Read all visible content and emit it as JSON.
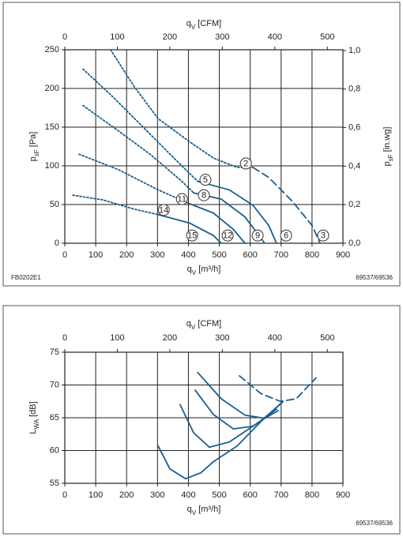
{
  "chart_data": [
    {
      "type": "line",
      "x2label": [
        "q",
        "V",
        " [CFM]"
      ],
      "xlabel": [
        "q",
        "V",
        " [m³/h]"
      ],
      "ylabel": [
        "p",
        "sF",
        " [Pa]"
      ],
      "y2label": [
        "p",
        "sF",
        " [in.wg]"
      ],
      "xlim": [
        0,
        900
      ],
      "xticks": [
        0,
        100,
        200,
        300,
        400,
        500,
        600,
        700,
        800,
        900
      ],
      "x2lim": [
        0,
        529.7
      ],
      "x2ticks": [
        0,
        100,
        200,
        300,
        400,
        500
      ],
      "ylim": [
        0,
        250
      ],
      "yticks": [
        0,
        50,
        100,
        150,
        200,
        250
      ],
      "y2lim": [
        0,
        1.004
      ],
      "y2ticks": [
        {
          "value": 0,
          "label": "0,0"
        },
        {
          "value": 0.2,
          "label": "0,2"
        },
        {
          "value": 0.4,
          "label": "0,4"
        },
        {
          "value": 0.6,
          "label": "0,6"
        },
        {
          "value": 0.8,
          "label": "0,8"
        },
        {
          "value": 1.0,
          "label": "1,0"
        }
      ],
      "grid": true,
      "series": [
        {
          "color": "#1b5e8c",
          "linestyle": "dotted",
          "x": [
            148,
            225,
            302,
            404,
            481,
            558,
            609
          ],
          "values": [
            250,
            202,
            161,
            131,
            110,
            98,
            98
          ]
        },
        {
          "color": "#1b5e8c",
          "linestyle": "dashed",
          "x": [
            609,
            660,
            737,
            800,
            826
          ],
          "values": [
            98,
            85,
            54,
            23,
            0
          ]
        },
        {
          "color": "#1b5e8c",
          "linestyle": "dotted",
          "x": [
            59,
            148,
            251,
            353,
            430
          ],
          "values": [
            225,
            192,
            151,
            110,
            80
          ]
        },
        {
          "color": "#1b5e8c",
          "linestyle": "solid",
          "x": [
            430,
            532,
            609,
            660,
            685
          ],
          "values": [
            80,
            69,
            49,
            23,
            0
          ]
        },
        {
          "color": "#1b5e8c",
          "linestyle": "dotted",
          "x": [
            59,
            174,
            276,
            379,
            417
          ],
          "values": [
            178,
            145,
            115,
            80,
            65
          ]
        },
        {
          "color": "#1b5e8c",
          "linestyle": "solid",
          "x": [
            417,
            506,
            583,
            647
          ],
          "values": [
            65,
            57,
            34,
            0
          ]
        },
        {
          "color": "#1b5e8c",
          "linestyle": "dotted",
          "x": [
            46,
            174,
            302,
            404
          ],
          "values": [
            115,
            95,
            69,
            51
          ]
        },
        {
          "color": "#1b5e8c",
          "linestyle": "solid",
          "x": [
            404,
            481,
            545,
            583
          ],
          "values": [
            51,
            39,
            18,
            0
          ]
        },
        {
          "color": "#1b5e8c",
          "linestyle": "dotted",
          "x": [
            26,
            123,
            225,
            302
          ],
          "values": [
            62,
            56,
            44,
            37
          ]
        },
        {
          "color": "#1b5e8c",
          "linestyle": "solid",
          "x": [
            302,
            404,
            481,
            506
          ],
          "values": [
            37,
            26,
            10,
            0
          ]
        }
      ],
      "annotations": [
        {
          "text": "2",
          "x": 586,
          "y": 103
        },
        {
          "text": "5",
          "x": 455,
          "y": 82
        },
        {
          "text": "8",
          "x": 450,
          "y": 62
        },
        {
          "text": "11",
          "x": 379,
          "y": 57
        },
        {
          "text": "14",
          "x": 320,
          "y": 43
        },
        {
          "text": "15",
          "x": 412,
          "y": 10
        },
        {
          "text": "12",
          "x": 527,
          "y": 10
        },
        {
          "text": "9",
          "x": 624,
          "y": 10
        },
        {
          "text": "6",
          "x": 716,
          "y": 10
        },
        {
          "text": "3",
          "x": 836,
          "y": 10
        }
      ],
      "code_left": "FB0202E1",
      "code_right": "69537/69536"
    },
    {
      "type": "line",
      "x2label": [
        "q",
        "V",
        " [CFM]"
      ],
      "xlabel": [
        "q",
        "V",
        " [m³/h]"
      ],
      "ylabel": [
        "L",
        "WA",
        " [dB]"
      ],
      "xlim": [
        0,
        900
      ],
      "xticks": [
        0,
        100,
        200,
        300,
        400,
        500,
        600,
        700,
        800,
        900
      ],
      "x2lim": [
        0,
        529.7
      ],
      "x2ticks": [
        0,
        100,
        200,
        300,
        400,
        500
      ],
      "ylim": [
        55,
        75
      ],
      "yticks": [
        55,
        60,
        65,
        70,
        75
      ],
      "grid": true,
      "series": [
        {
          "color": "#1b5e8c",
          "linestyle": "solid",
          "x": [
            302,
            340,
            391,
            440,
            481,
            558,
            634,
            706
          ],
          "values": [
            60.7,
            57.2,
            55.7,
            56.6,
            58.3,
            60.7,
            64.4,
            67.5
          ]
        },
        {
          "color": "#1b5e8c",
          "linestyle": "solid",
          "x": [
            373,
            417,
            468,
            532,
            634,
            703
          ],
          "values": [
            67.0,
            62.7,
            60.5,
            61.3,
            64.5,
            67.3
          ]
        },
        {
          "color": "#1b5e8c",
          "linestyle": "solid",
          "x": [
            422,
            481,
            545,
            609,
            685
          ],
          "values": [
            69.2,
            65.5,
            63.3,
            63.7,
            66.3
          ]
        },
        {
          "color": "#1b5e8c",
          "linestyle": "solid",
          "x": [
            430,
            506,
            583,
            647,
            691
          ],
          "values": [
            71.9,
            67.9,
            65.4,
            64.9,
            66.1
          ]
        },
        {
          "color": "#1b5e8c",
          "linestyle": "dashed",
          "x": [
            565,
            634,
            698,
            749,
            813
          ],
          "values": [
            71.4,
            68.7,
            67.5,
            67.9,
            71.1
          ]
        }
      ],
      "annotations": [],
      "code_right": "69537/69536"
    }
  ]
}
